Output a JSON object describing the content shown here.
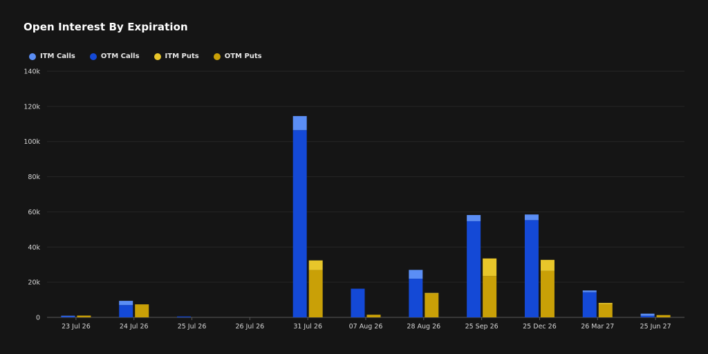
{
  "chart_data": {
    "type": "bar",
    "title": "Open Interest By Expiration",
    "stacked": true,
    "categories": [
      "23 Jul 26",
      "24 Jul 26",
      "25 Jul 26",
      "26 Jul 26",
      "31 Jul 26",
      "07 Aug 26",
      "28 Aug 26",
      "25 Sep 26",
      "25 Dec 26",
      "26 Mar 27",
      "25 Jun 27"
    ],
    "ylim": [
      0,
      140000
    ],
    "yticks": [
      0,
      20000,
      40000,
      60000,
      80000,
      100000,
      120000,
      140000
    ],
    "ytick_labels": [
      "0",
      "20k",
      "40k",
      "60k",
      "80k",
      "100k",
      "120k",
      "140k"
    ],
    "legend_position": "top-left",
    "grid": true,
    "stacks": {
      "calls": [
        "OTM Calls",
        "ITM Calls"
      ],
      "puts": [
        "OTM Puts",
        "ITM Puts"
      ]
    },
    "series": [
      {
        "name": "ITM Calls",
        "color": "#5b8ef5",
        "values": [
          100,
          2400,
          0,
          0,
          8000,
          0,
          5000,
          3500,
          3200,
          1000,
          1200
        ]
      },
      {
        "name": "OTM Calls",
        "color": "#1449d6",
        "values": [
          800,
          7000,
          500,
          0,
          106500,
          16300,
          22000,
          54700,
          55300,
          14300,
          900
        ]
      },
      {
        "name": "ITM Puts",
        "color": "#e8c62a",
        "values": [
          0,
          0,
          0,
          0,
          5500,
          0,
          400,
          10000,
          6300,
          700,
          0
        ]
      },
      {
        "name": "OTM Puts",
        "color": "#c9a007",
        "values": [
          1000,
          7400,
          0,
          0,
          26900,
          1500,
          13500,
          23500,
          26400,
          7500,
          1300
        ]
      }
    ]
  }
}
